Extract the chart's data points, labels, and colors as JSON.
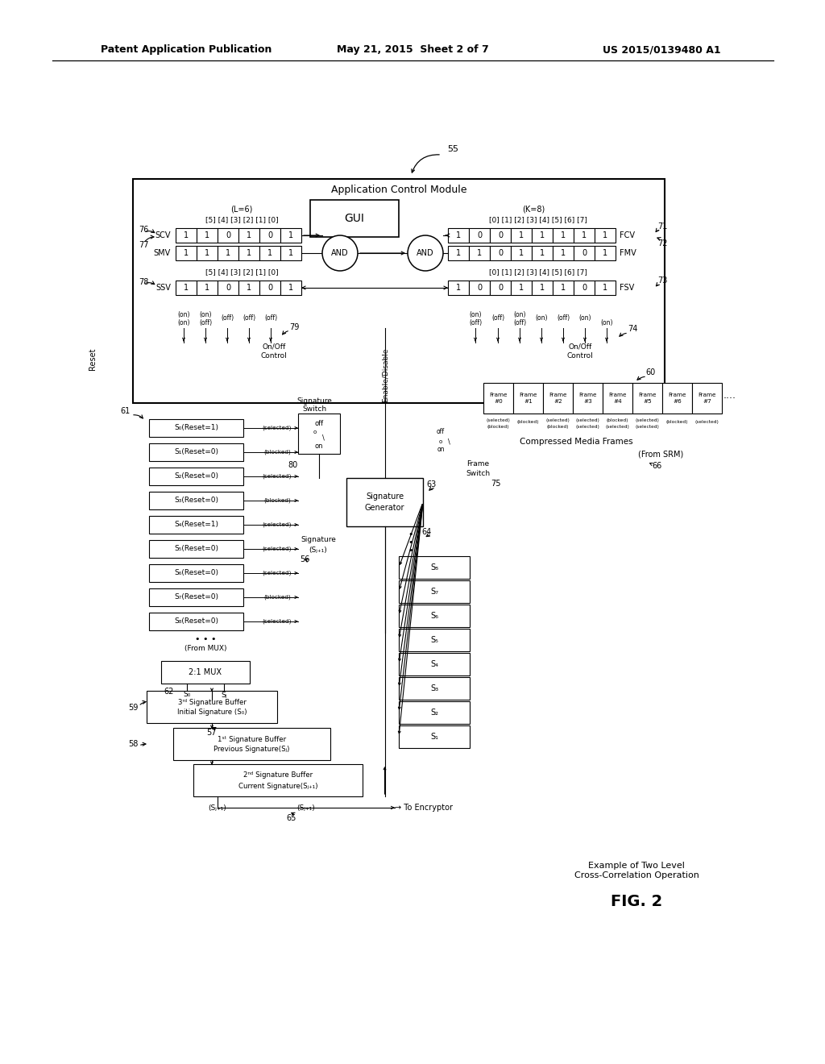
{
  "bg": "#ffffff",
  "header_left": "Patent Application Publication",
  "header_mid": "May 21, 2015  Sheet 2 of 7",
  "header_right": "US 2015/0139480 A1",
  "fig2_caption": "Example of Two Level\nCross-Correlation Operation",
  "fig2_label": "FIG. 2",
  "scv_vals": [
    "1",
    "1",
    "0",
    "1",
    "0",
    "1"
  ],
  "smv_vals": [
    "1",
    "1",
    "1",
    "1",
    "1",
    "1"
  ],
  "ssv_vals": [
    "1",
    "1",
    "0",
    "1",
    "0",
    "1"
  ],
  "fcv_vals": [
    "1",
    "0",
    "0",
    "1",
    "1",
    "1",
    "1",
    "1"
  ],
  "fmv_vals": [
    "1",
    "1",
    "0",
    "1",
    "1",
    "1",
    "0",
    "1"
  ],
  "fsv_vals": [
    "1",
    "0",
    "0",
    "1",
    "1",
    "1",
    "0",
    "1"
  ],
  "s_boxes": [
    "S₀(Reset=1)",
    "S₁(Reset=0)",
    "S₂(Reset=0)",
    "S₃(Reset=0)",
    "S₄(Reset=1)",
    "S₅(Reset=0)",
    "S₆(Reset=0)",
    "S₇(Reset=0)",
    "S₈(Reset=0)"
  ],
  "s_sel": [
    "(selected)",
    "(blocked)",
    "(selected)",
    "(blocked)",
    "(selected)",
    "(selected)",
    "(selected)",
    "(blocked)",
    "(selected)"
  ],
  "ss_labels": [
    "S₈",
    "S₇",
    "S₆",
    "S₅",
    "S₄",
    "S₃",
    "S₂",
    "S₁"
  ],
  "frame_labels": [
    "Frame\n#0",
    "Frame\n#1",
    "Frame\n#2",
    "Frame\n#3",
    "Frame\n#4",
    "Frame\n#5",
    "Frame\n#6",
    "Frame\n#7"
  ],
  "frame_sel_top": [
    "(selected)",
    "(blocked)",
    "(selected)",
    "(selected)",
    "(blocked)",
    "(selected)",
    "(blocked)",
    "(selected)"
  ],
  "frame_sel_bot": [
    "(blocked)",
    "",
    "(blocked)",
    "(selected)",
    "(selected)",
    "(selected)",
    "",
    ""
  ],
  "sw_xs_l": [
    228,
    255,
    282,
    309,
    336
  ],
  "sw_lbl_l": [
    "(on)",
    "(on)",
    "(off)",
    "(off)",
    "(off)"
  ],
  "sw_lbl_l2": [
    "(on)",
    "(off)",
    "",
    "",
    ""
  ],
  "sw_xs_r": [
    590,
    618,
    645,
    672,
    699,
    726,
    753
  ],
  "sw_lbl_r": [
    "(on)",
    "(off)",
    "(on)",
    "(on)",
    "(off)",
    "(on)",
    ""
  ],
  "sw_lbl_r2": [
    "(off)",
    "",
    "(off)",
    "",
    "",
    "",
    "(on)"
  ]
}
